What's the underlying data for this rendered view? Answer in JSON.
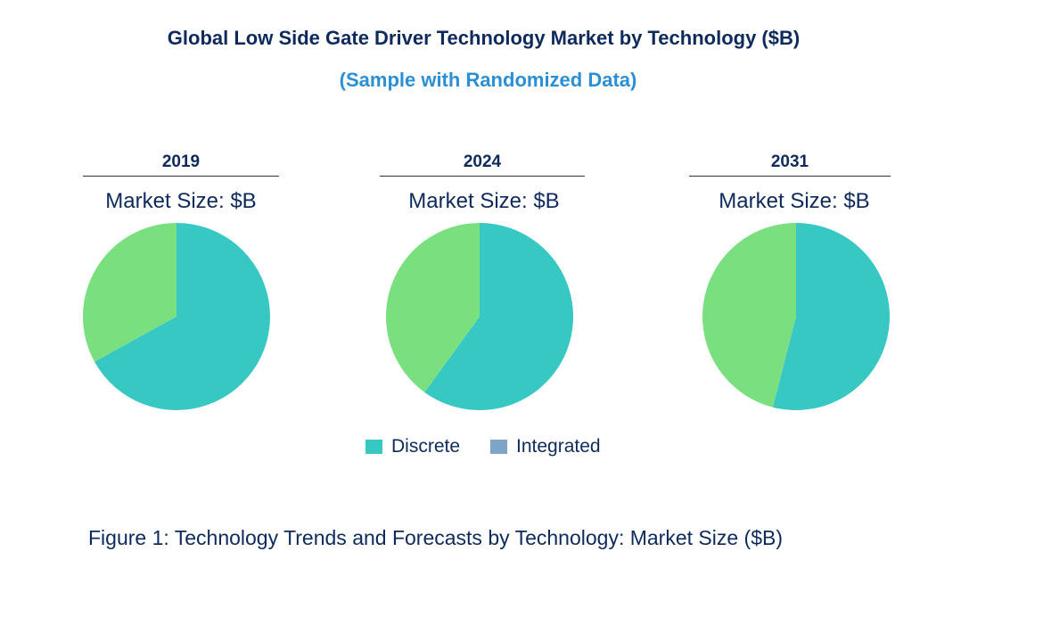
{
  "chart_data": {
    "type": "pie",
    "title": "Global Low Side Gate Driver Technology Market by Technology ($B)",
    "subtitle": "(Sample with Randomized Data)",
    "legend": [
      {
        "name": "Discrete",
        "color": "#37c8c3"
      },
      {
        "name": "Integrated",
        "color": "#7ea4c8"
      }
    ],
    "slice_colors": {
      "Discrete": "#37c8c3",
      "Integrated": "#7ae07f"
    },
    "pies": [
      {
        "year": "2019",
        "label": "Market Size: $B",
        "values": {
          "Discrete": 67,
          "Integrated": 33
        }
      },
      {
        "year": "2024",
        "label": "Market Size: $B",
        "values": {
          "Discrete": 60,
          "Integrated": 40
        }
      },
      {
        "year": "2031",
        "label": "Market Size: $B",
        "values": {
          "Discrete": 54,
          "Integrated": 46
        }
      }
    ],
    "legend_position": "bottom-center"
  },
  "caption": "Figure 1: Technology Trends and Forecasts by Technology: Market Size ($B)"
}
